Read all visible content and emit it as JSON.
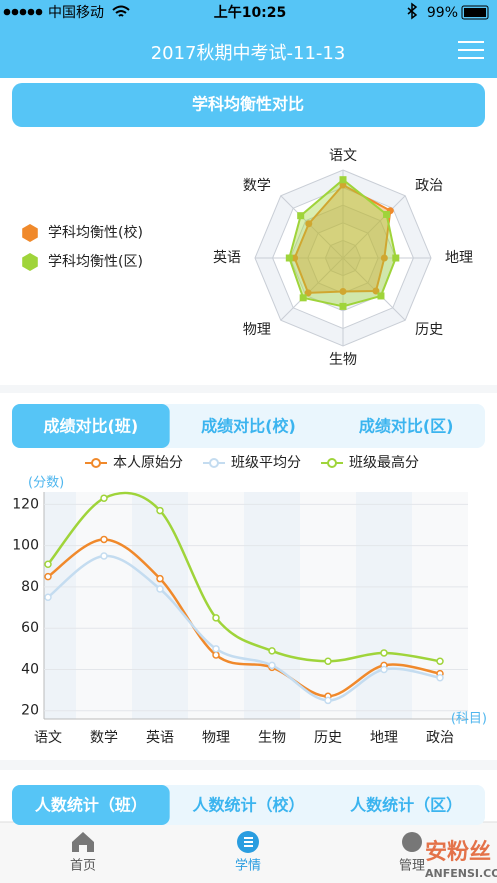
{
  "status_bar": {
    "carrier": "中国移动",
    "time": "上午10:25",
    "battery": "99%"
  },
  "header": {
    "title": "2017秋期中考试-11-13"
  },
  "radar_section": {
    "title": "学科均衡性对比"
  },
  "chart_data": [
    {
      "type": "radar",
      "categories": [
        "语文",
        "政治",
        "地理",
        "历史",
        "生物",
        "物理",
        "英语",
        "数学"
      ],
      "rlim": [
        0,
        100
      ],
      "rticks": [
        20,
        40,
        60,
        80,
        100
      ],
      "series": [
        {
          "name": "学科均衡性(校)",
          "color": "#f0892b",
          "values": [
            83,
            76,
            47,
            53,
            38,
            56,
            55,
            55
          ]
        },
        {
          "name": "学科均衡性(区)",
          "color": "#9fd43a",
          "values": [
            89,
            70,
            60,
            61,
            55,
            64,
            61,
            68
          ]
        }
      ],
      "legend": "left"
    },
    {
      "type": "line",
      "ylabel": "(分数)",
      "xlabel": "(科目)",
      "categories": [
        "语文",
        "数学",
        "英语",
        "物理",
        "生物",
        "历史",
        "地理",
        "政治"
      ],
      "ylim": [
        16,
        126
      ],
      "yticks": [
        20,
        40,
        60,
        80,
        100,
        120
      ],
      "series": [
        {
          "name": "本人原始分",
          "color": "#f0892b",
          "values": [
            85,
            103,
            84,
            47,
            41,
            27,
            42,
            38
          ]
        },
        {
          "name": "班级平均分",
          "color": "#c4dcf0",
          "values": [
            75,
            95,
            79,
            50,
            42,
            25,
            40,
            36
          ]
        },
        {
          "name": "班级最高分",
          "color": "#9fd43a",
          "values": [
            91,
            123,
            117,
            65,
            49,
            44,
            48,
            44
          ]
        }
      ],
      "legend": "top",
      "smooth": true
    }
  ],
  "score_tabs": {
    "tabs": [
      "成绩对比(班)",
      "成绩对比(校)",
      "成绩对比(区)"
    ],
    "active": 0
  },
  "count_tabs": {
    "tabs": [
      "人数统计（班）",
      "人数统计（校）",
      "人数统计（区）"
    ],
    "active": 0
  },
  "nav": {
    "items": [
      "首页",
      "学情",
      "管理"
    ],
    "active": 1
  },
  "watermark": [
    "安粉丝",
    "ANFENSI.COM"
  ]
}
